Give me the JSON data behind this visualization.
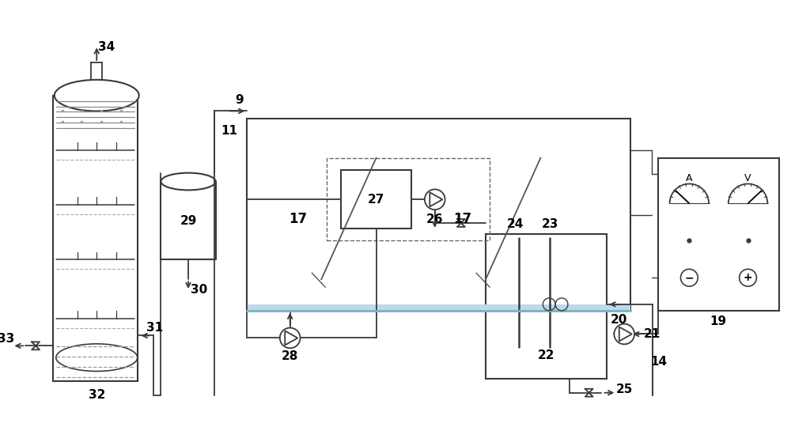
{
  "bg_color": "#ffffff",
  "lc": "#3a3a3a",
  "blue_rc": "#7ab0c8"
}
